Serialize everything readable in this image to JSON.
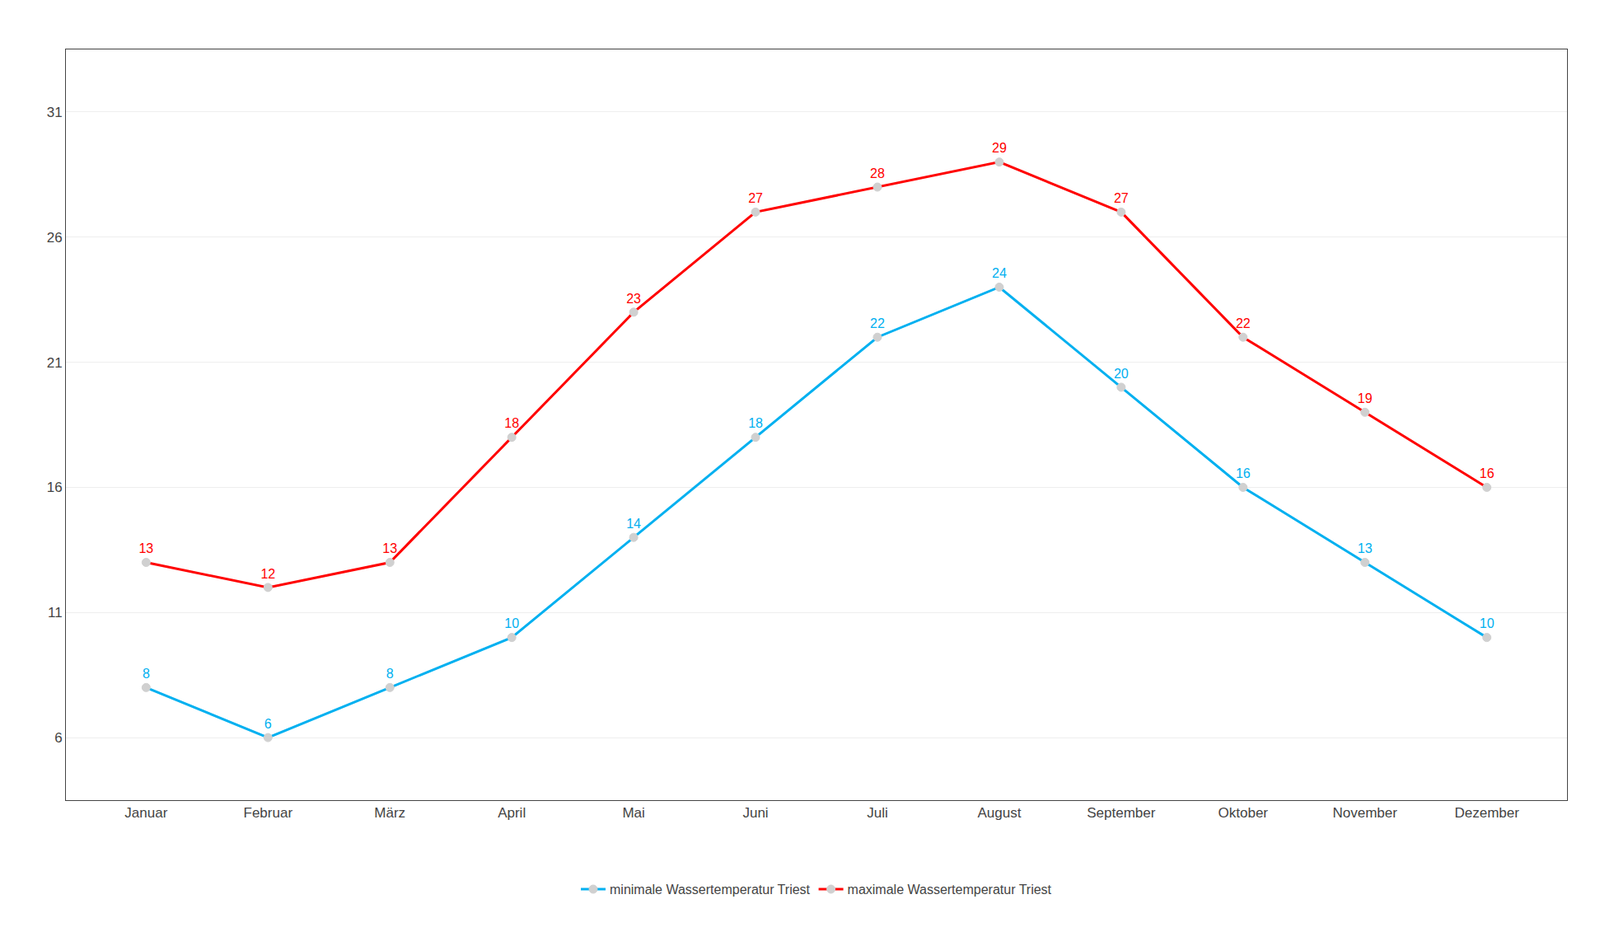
{
  "chart_data": {
    "type": "line",
    "categories": [
      "Januar",
      "Februar",
      "März",
      "April",
      "Mai",
      "Juni",
      "Juli",
      "August",
      "September",
      "Oktober",
      "November",
      "Dezember"
    ],
    "series": [
      {
        "name": "minimale Wassertemperatur Triest",
        "color": "#00b0f0",
        "values": [
          8,
          6,
          8,
          10,
          14,
          18,
          22,
          24,
          20,
          16,
          13,
          10
        ]
      },
      {
        "name": "maximale Wassertemperatur Triest",
        "color": "#ff0000",
        "values": [
          13,
          12,
          13,
          18,
          23,
          27,
          28,
          29,
          27,
          22,
          19,
          16
        ]
      }
    ],
    "ylim": [
      3.5,
      33.5
    ],
    "yticks": [
      6,
      11,
      16,
      21,
      26,
      31
    ],
    "grid": true,
    "data_labels": true,
    "legend": "bottom",
    "marker": "circle"
  }
}
